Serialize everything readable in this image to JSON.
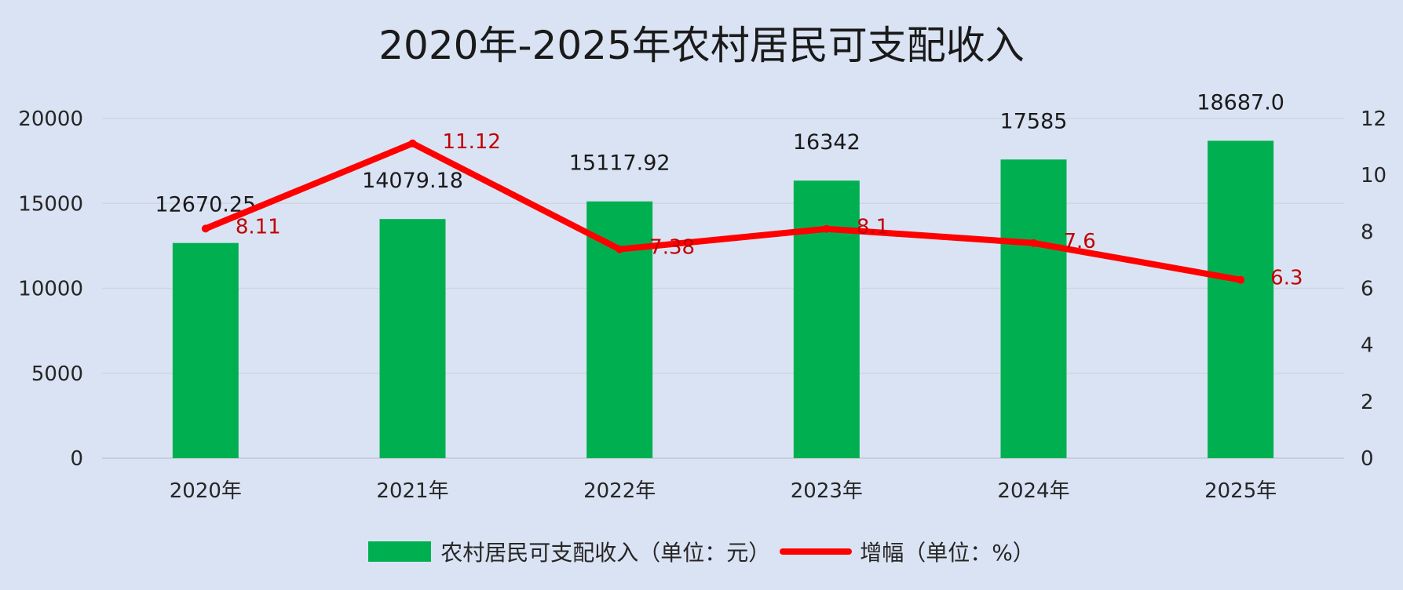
{
  "colors": {
    "bar": "#00b050",
    "line": "#ff0000",
    "line_label": "#c00000",
    "grid": "#cfd6e2",
    "text": "#262626"
  },
  "chart_data": {
    "type": "bar",
    "title": "2020年-2025年农村居民可支配收入",
    "categories": [
      "2020年",
      "2021年",
      "2022年",
      "2023年",
      "2024年",
      "2025年"
    ],
    "series": [
      {
        "name": "农村居民可支配收入（单位：元）",
        "type": "bar",
        "axis": "left",
        "values": [
          12670.25,
          14079.18,
          15117.92,
          16342,
          17585,
          18687.0
        ],
        "labels": [
          "12670.25",
          "14079.18",
          "15117.92",
          "16342",
          "17585",
          "18687.0"
        ]
      },
      {
        "name": "增幅（单位：%）",
        "type": "line",
        "axis": "right",
        "values": [
          8.11,
          11.12,
          7.38,
          8.1,
          7.6,
          6.3
        ],
        "labels": [
          "8.11",
          "11.12",
          "7.38",
          "8.1",
          "7.6",
          "6.3"
        ]
      }
    ],
    "y_left": {
      "min": 0,
      "max": 20000,
      "ticks": [
        "0",
        "5000",
        "10000",
        "15000",
        "20000"
      ]
    },
    "y_right": {
      "min": 0,
      "max": 12,
      "ticks": [
        "0",
        "2",
        "4",
        "6",
        "8",
        "10",
        "12"
      ]
    },
    "grid": true,
    "legend": "bottom"
  }
}
